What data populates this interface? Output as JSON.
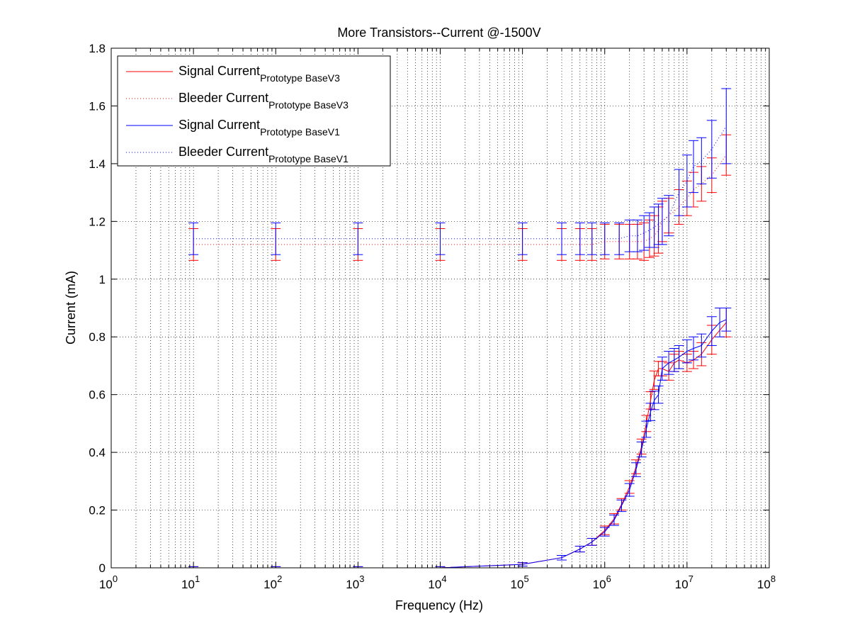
{
  "chart_data": {
    "type": "line",
    "title": "More Transistors--Current @-1500V",
    "xlabel": "Frequency (Hz)",
    "ylabel": "Current (mA)",
    "xscale": "log",
    "xlim": [
      1,
      100000000
    ],
    "ylim": [
      0,
      1.8
    ],
    "grid": true,
    "legend_position": "top-left",
    "x_ticks": [
      {
        "base": "10",
        "exp": "0"
      },
      {
        "base": "10",
        "exp": "1"
      },
      {
        "base": "10",
        "exp": "2"
      },
      {
        "base": "10",
        "exp": "3"
      },
      {
        "base": "10",
        "exp": "4"
      },
      {
        "base": "10",
        "exp": "5"
      },
      {
        "base": "10",
        "exp": "6"
      },
      {
        "base": "10",
        "exp": "7"
      },
      {
        "base": "10",
        "exp": "8"
      }
    ],
    "y_ticks": [
      "0",
      "0.2",
      "0.4",
      "0.6",
      "0.8",
      "1",
      "1.2",
      "1.4",
      "1.6",
      "1.8"
    ],
    "legend": [
      {
        "main": "Signal Current",
        "sub": "Prototype BaseV3",
        "color": "#ff0000",
        "style": "solid"
      },
      {
        "main": "Bleeder Current",
        "sub": "Prototype BaseV3",
        "color": "#ff0000",
        "style": "dotted"
      },
      {
        "main": "Signal Current",
        "sub": "Prototype BaseV1",
        "color": "#0000ff",
        "style": "solid"
      },
      {
        "main": "Bleeder Current",
        "sub": "Prototype BaseV1",
        "color": "#0000ff",
        "style": "dotted"
      }
    ],
    "series": [
      {
        "name": "Signal Current Prototype BaseV3",
        "color": "#ff0000",
        "style": "solid",
        "x": [
          10,
          100,
          1000,
          10000,
          100000,
          300000,
          500000,
          700000,
          1000000,
          1300000,
          1600000,
          2000000,
          2400000,
          2800000,
          3200000,
          3600000,
          4000000,
          4500000,
          5000000,
          6000000,
          7000000,
          8000000,
          10000000,
          12000000,
          15000000,
          20000000,
          30000000
        ],
        "y": [
          0.0,
          0.0,
          0.0,
          0.0,
          0.012,
          0.035,
          0.065,
          0.09,
          0.13,
          0.17,
          0.22,
          0.28,
          0.35,
          0.42,
          0.5,
          0.58,
          0.65,
          0.69,
          0.69,
          0.68,
          0.71,
          0.72,
          0.71,
          0.72,
          0.74,
          0.79,
          0.85
        ],
        "err": [
          0.004,
          0.004,
          0.004,
          0.004,
          0.006,
          0.008,
          0.01,
          0.012,
          0.015,
          0.018,
          0.02,
          0.022,
          0.024,
          0.026,
          0.028,
          0.03,
          0.032,
          0.025,
          0.025,
          0.03,
          0.03,
          0.03,
          0.03,
          0.03,
          0.04,
          0.05,
          0.05
        ]
      },
      {
        "name": "Bleeder Current Prototype BaseV3",
        "color": "#ff0000",
        "style": "dotted",
        "x": [
          10,
          100,
          1000,
          10000,
          100000,
          300000,
          500000,
          700000,
          1000000,
          1500000,
          2000000,
          2500000,
          3000000,
          3500000,
          4000000,
          4500000,
          5000000,
          6000000,
          8000000,
          10000000,
          12000000,
          15000000,
          20000000,
          30000000
        ],
        "y": [
          1.12,
          1.12,
          1.12,
          1.12,
          1.12,
          1.12,
          1.12,
          1.12,
          1.13,
          1.13,
          1.13,
          1.13,
          1.13,
          1.14,
          1.15,
          1.17,
          1.2,
          1.22,
          1.25,
          1.28,
          1.31,
          1.33,
          1.36,
          1.43
        ],
        "err": [
          0.055,
          0.055,
          0.055,
          0.055,
          0.055,
          0.055,
          0.055,
          0.055,
          0.06,
          0.06,
          0.06,
          0.06,
          0.065,
          0.065,
          0.07,
          0.08,
          0.07,
          0.06,
          0.06,
          0.06,
          0.06,
          0.06,
          0.06,
          0.07
        ]
      },
      {
        "name": "Signal Current Prototype BaseV1",
        "color": "#0000ff",
        "style": "solid",
        "x": [
          10,
          100,
          1000,
          10000,
          100000,
          300000,
          500000,
          700000,
          1000000,
          1300000,
          1600000,
          2000000,
          2400000,
          2800000,
          3200000,
          3600000,
          4000000,
          4500000,
          5000000,
          6000000,
          7000000,
          8000000,
          10000000,
          12000000,
          15000000,
          20000000,
          25000000,
          30000000
        ],
        "y": [
          0.0,
          0.0,
          0.0,
          0.0,
          0.012,
          0.035,
          0.065,
          0.09,
          0.125,
          0.165,
          0.215,
          0.27,
          0.34,
          0.41,
          0.48,
          0.54,
          0.58,
          0.6,
          0.69,
          0.71,
          0.72,
          0.73,
          0.75,
          0.76,
          0.77,
          0.82,
          0.85,
          0.86
        ],
        "err": [
          0.004,
          0.004,
          0.004,
          0.004,
          0.006,
          0.008,
          0.01,
          0.012,
          0.015,
          0.018,
          0.02,
          0.022,
          0.024,
          0.026,
          0.028,
          0.03,
          0.032,
          0.03,
          0.04,
          0.04,
          0.04,
          0.04,
          0.04,
          0.04,
          0.04,
          0.05,
          0.05,
          0.04
        ]
      },
      {
        "name": "Bleeder Current Prototype BaseV1",
        "color": "#0000ff",
        "style": "dotted",
        "x": [
          10,
          100,
          1000,
          10000,
          100000,
          300000,
          500000,
          700000,
          1000000,
          1500000,
          2000000,
          2500000,
          3000000,
          3500000,
          4000000,
          4500000,
          5000000,
          6000000,
          8000000,
          10000000,
          12000000,
          15000000,
          20000000,
          30000000
        ],
        "y": [
          1.14,
          1.14,
          1.14,
          1.14,
          1.14,
          1.14,
          1.14,
          1.14,
          1.14,
          1.14,
          1.15,
          1.15,
          1.16,
          1.17,
          1.18,
          1.19,
          1.2,
          1.22,
          1.3,
          1.34,
          1.39,
          1.41,
          1.45,
          1.53
        ],
        "err": [
          0.055,
          0.055,
          0.055,
          0.055,
          0.055,
          0.055,
          0.055,
          0.055,
          0.055,
          0.055,
          0.055,
          0.055,
          0.06,
          0.06,
          0.07,
          0.07,
          0.08,
          0.07,
          0.08,
          0.09,
          0.09,
          0.08,
          0.1,
          0.13
        ]
      }
    ]
  }
}
